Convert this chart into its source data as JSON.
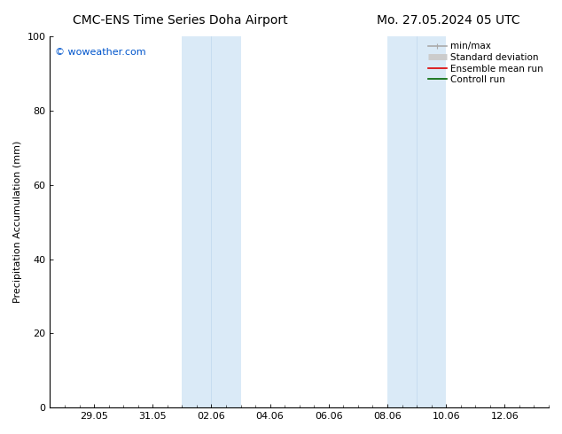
{
  "title_left": "CMC-ENS Time Series Doha Airport",
  "title_right": "Mo. 27.05.2024 05 UTC",
  "ylabel": "Precipitation Accumulation (mm)",
  "watermark": "© woweather.com",
  "watermark_color": "#0055cc",
  "ylim": [
    0,
    100
  ],
  "yticks": [
    0,
    20,
    40,
    60,
    80,
    100
  ],
  "x_tick_labels": [
    "29.05",
    "31.05",
    "02.06",
    "04.06",
    "06.06",
    "08.06",
    "10.06",
    "12.06"
  ],
  "x_tick_positions": [
    0,
    2,
    4,
    6,
    8,
    10,
    12,
    14
  ],
  "xlim": [
    -1.5,
    15.5
  ],
  "shade_regions": [
    {
      "x_start": 3.0,
      "x_end": 5.0,
      "color": "#daeaf7"
    },
    {
      "x_start": 10.0,
      "x_end": 12.0,
      "color": "#daeaf7"
    }
  ],
  "shade_midline_color": "#c0d8ee",
  "legend_items": [
    {
      "label": "min/max",
      "color": "#aaaaaa",
      "lw": 1.2
    },
    {
      "label": "Standard deviation",
      "color": "#cccccc",
      "lw": 5
    },
    {
      "label": "Ensemble mean run",
      "color": "#dd0000",
      "lw": 1.2
    },
    {
      "label": "Controll run",
      "color": "#006600",
      "lw": 1.2
    }
  ],
  "bg_color": "#ffffff",
  "font_family": "DejaVu Sans",
  "title_fontsize": 10,
  "tick_fontsize": 8,
  "ylabel_fontsize": 8,
  "legend_fontsize": 7.5,
  "watermark_fontsize": 8
}
